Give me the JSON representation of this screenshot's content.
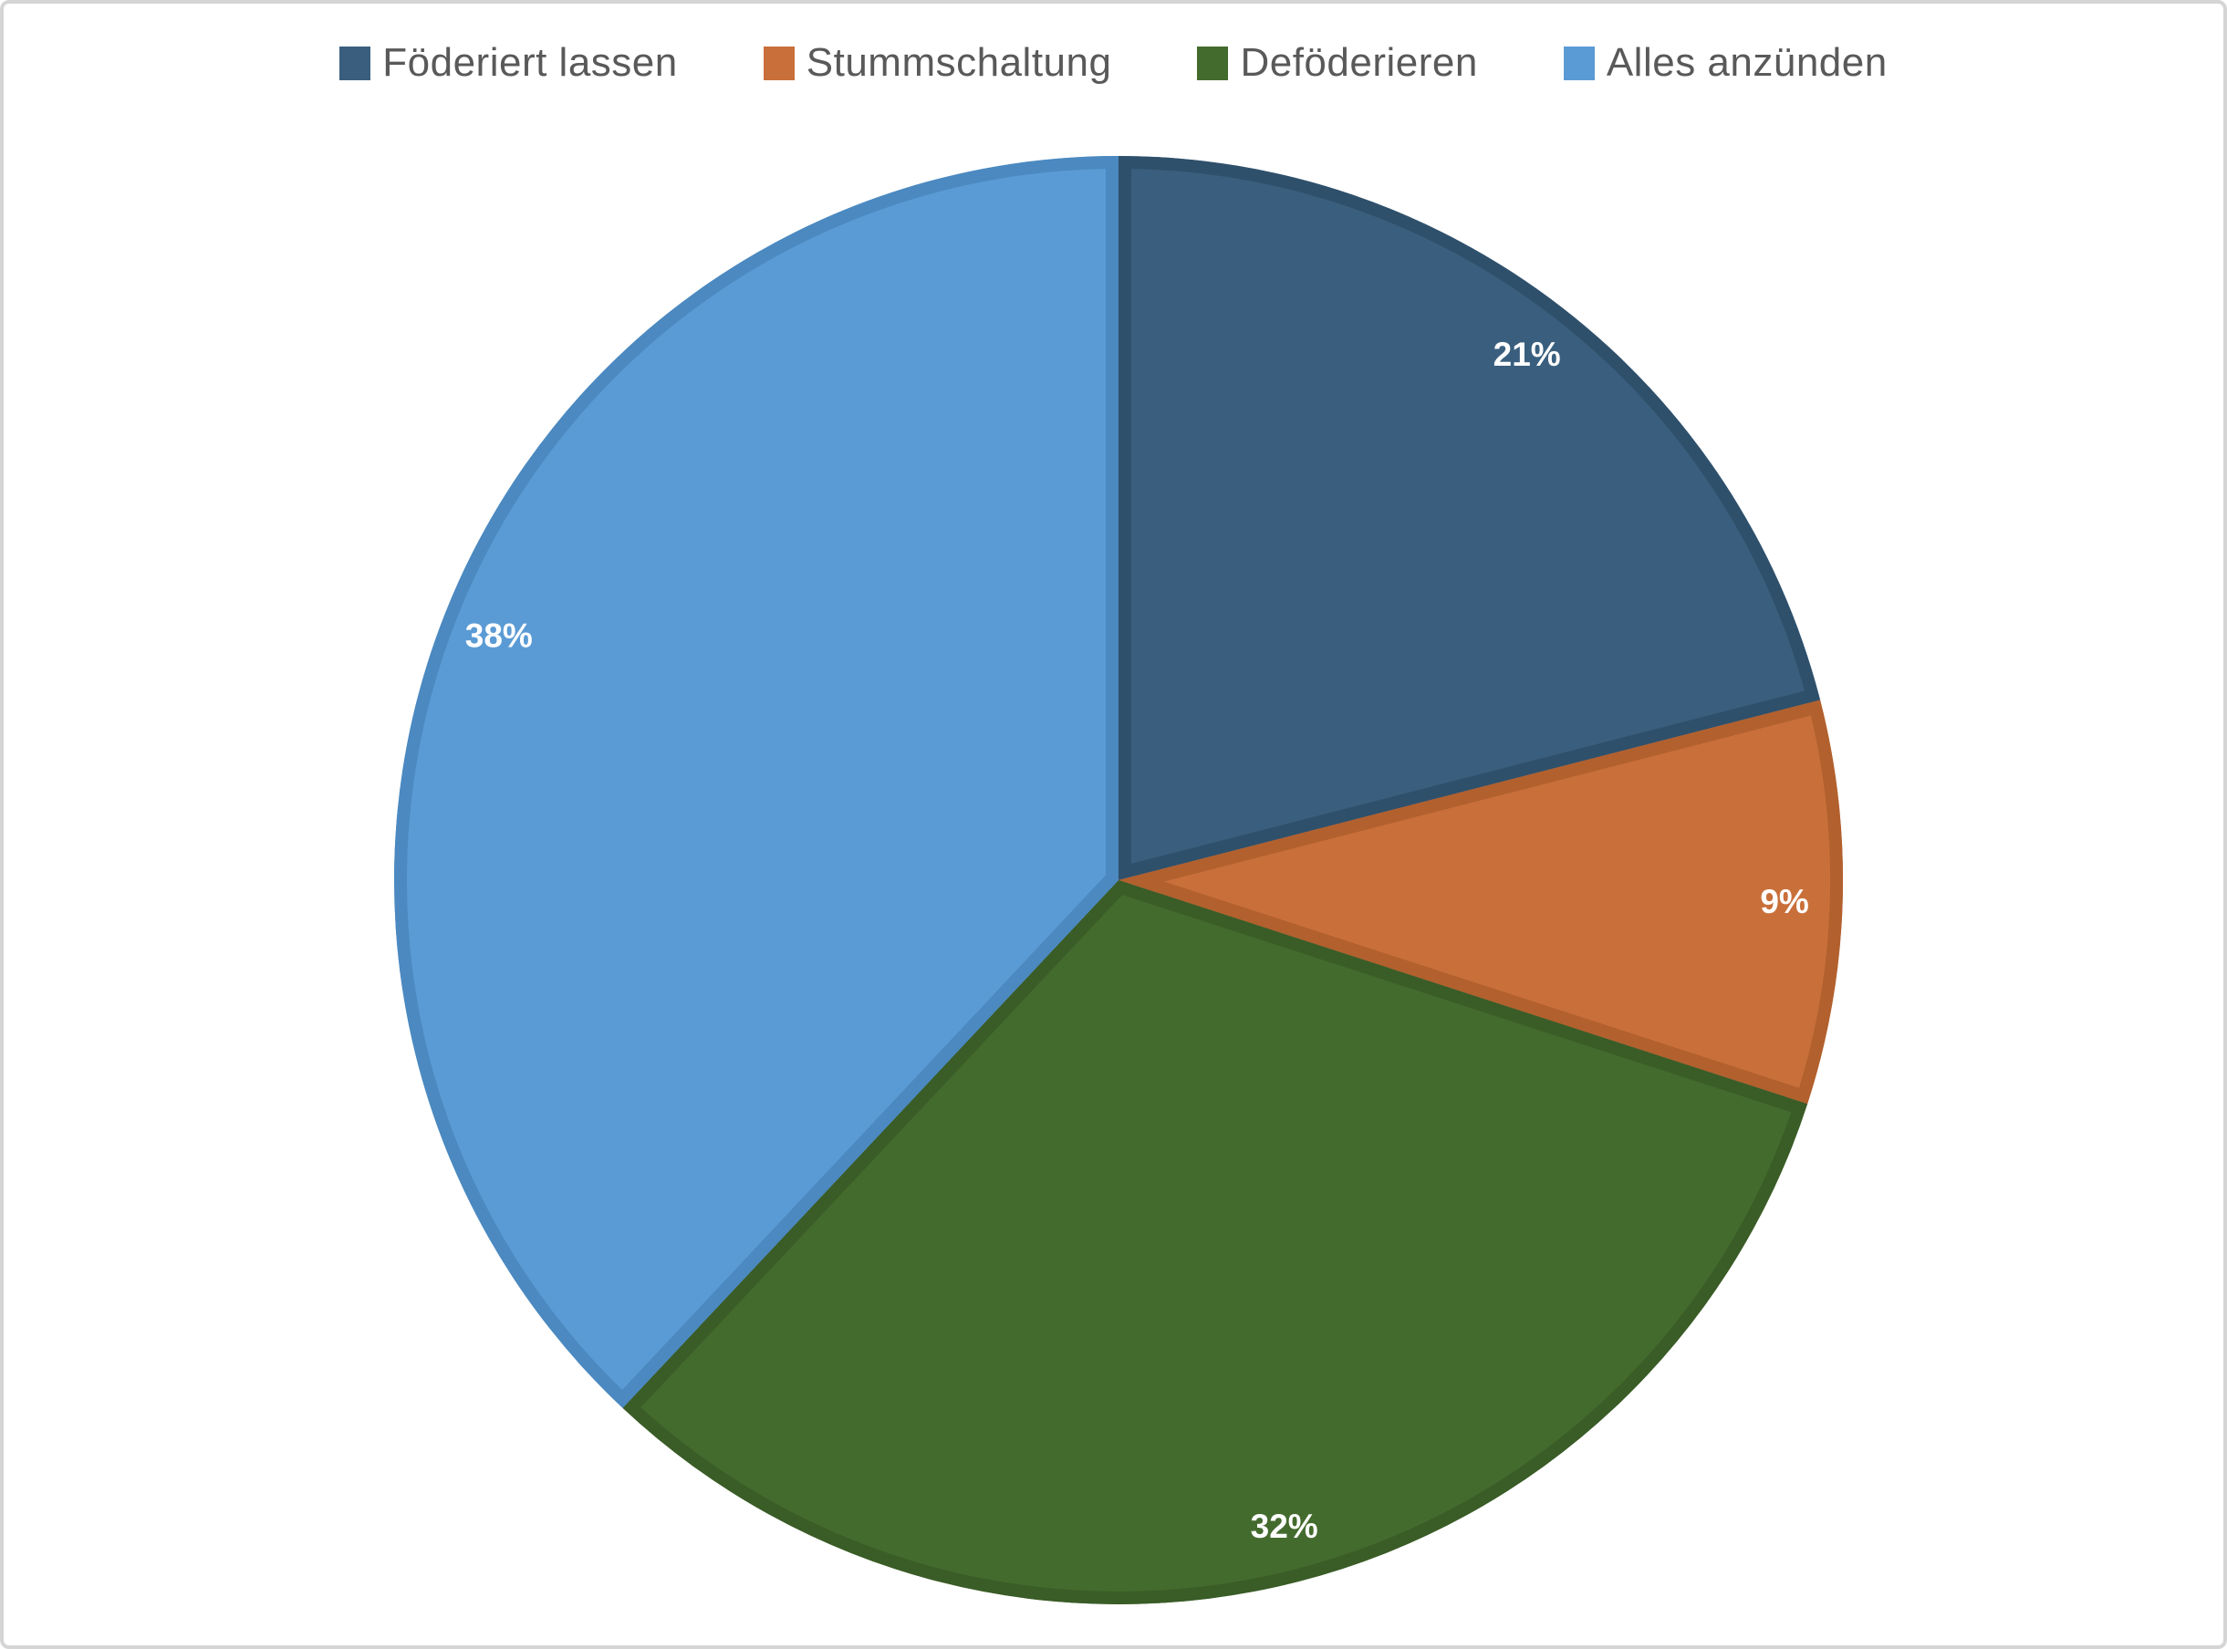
{
  "chart_data": {
    "type": "pie",
    "title": "",
    "legend_position": "top",
    "start_angle_deg": 0,
    "direction": "clockwise",
    "data_label_color": "#ffffff",
    "legend_text_color": "#595959",
    "segments": [
      {
        "label": "Föderiert lassen",
        "value": 21,
        "percent_label": "21%",
        "color": "#3a5f7e",
        "edge_color": "#2f506b"
      },
      {
        "label": "Stummschaltung",
        "value": 9,
        "percent_label": "9%",
        "color": "#c9703a",
        "edge_color": "#b2602e"
      },
      {
        "label": "Deföderieren",
        "value": 32,
        "percent_label": "32%",
        "color": "#446b2e",
        "edge_color": "#3a5c27"
      },
      {
        "label": "Alles anzünden",
        "value": 38,
        "percent_label": "38%",
        "color": "#5b9bd5",
        "edge_color": "#4b89c0"
      }
    ]
  }
}
